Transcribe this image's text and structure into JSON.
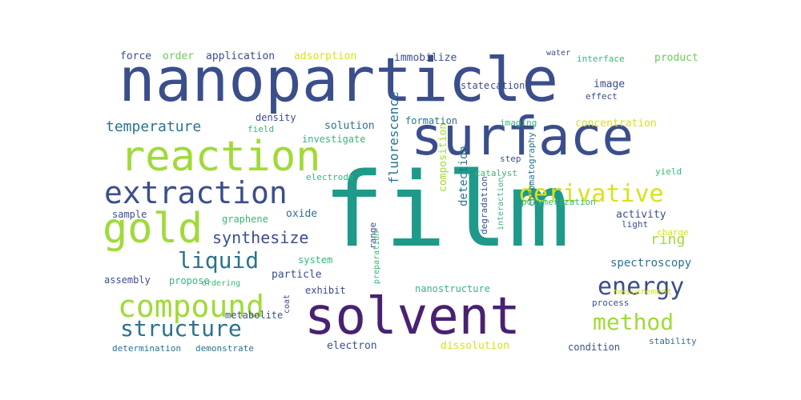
{
  "palette": {
    "navy": "#3b4e8c",
    "purple": "#482173",
    "dark_teal": "#2c728e",
    "teal": "#1f9a8a",
    "green": "#35b779",
    "lime": "#a0da39",
    "yellow": "#d8e219",
    "light_green": "#6ccd5a"
  },
  "words": [
    {
      "text": "nanoparticle",
      "color": "#3b4e8c"
    },
    {
      "text": "film",
      "color": "#1f9a8a"
    },
    {
      "text": "surface",
      "color": "#3b4e8c"
    },
    {
      "text": "solvent",
      "color": "#482173"
    },
    {
      "text": "reaction",
      "color": "#a0da39"
    },
    {
      "text": "extraction",
      "color": "#3b4e8c"
    },
    {
      "text": "gold",
      "color": "#a0da39"
    },
    {
      "text": "compound",
      "color": "#a0da39"
    },
    {
      "text": "derivative",
      "color": "#d8e219"
    },
    {
      "text": "energy",
      "color": "#3b4e8c"
    },
    {
      "text": "method",
      "color": "#a0da39"
    },
    {
      "text": "structure",
      "color": "#2c728e"
    },
    {
      "text": "liquid",
      "color": "#2c728e"
    },
    {
      "text": "temperature",
      "color": "#2c728e"
    },
    {
      "text": "synthesize",
      "color": "#3b4e8c"
    },
    {
      "text": "ring",
      "color": "#a0da39"
    },
    {
      "text": "spectroscopy",
      "color": "#2c728e"
    },
    {
      "text": "fluorescence",
      "color": "#2c728e"
    },
    {
      "text": "application",
      "color": "#3b4e8c"
    },
    {
      "text": "adsorption",
      "color": "#d8e219"
    },
    {
      "text": "force",
      "color": "#3b4e8c"
    },
    {
      "text": "order",
      "color": "#6ccd5a"
    },
    {
      "text": "immobilize",
      "color": "#3b4e8c"
    },
    {
      "text": "product",
      "color": "#6ccd5a"
    },
    {
      "text": "water",
      "color": "#3b4e8c"
    },
    {
      "text": "interface",
      "color": "#35b779"
    },
    {
      "text": "concentration",
      "color": "#d8e219"
    },
    {
      "text": "image",
      "color": "#3b4e8c"
    },
    {
      "text": "effect",
      "color": "#3b4e8c"
    },
    {
      "text": "state",
      "color": "#3b4e8c"
    },
    {
      "text": "cation",
      "color": "#3b4e8c"
    },
    {
      "text": "density",
      "color": "#3b4e8c"
    },
    {
      "text": "solution",
      "color": "#2c728e"
    },
    {
      "text": "formation",
      "color": "#2c728e"
    },
    {
      "text": "imaging",
      "color": "#35b779"
    },
    {
      "text": "investigate",
      "color": "#35b779"
    },
    {
      "text": "field",
      "color": "#35b779"
    },
    {
      "text": "activity",
      "color": "#3b4e8c"
    },
    {
      "text": "oxide",
      "color": "#2c728e"
    },
    {
      "text": "graphene",
      "color": "#35b779"
    },
    {
      "text": "sample",
      "color": "#3b4e8c"
    },
    {
      "text": "system",
      "color": "#35b779"
    },
    {
      "text": "particle",
      "color": "#3b4e8c"
    },
    {
      "text": "assembly",
      "color": "#3b4e8c"
    },
    {
      "text": "propose",
      "color": "#35b779"
    },
    {
      "text": "exhibit",
      "color": "#3b4e8c"
    },
    {
      "text": "nanostructure",
      "color": "#35b779"
    },
    {
      "text": "metabolite",
      "color": "#3b4e8c"
    },
    {
      "text": "determination",
      "color": "#2c728e"
    },
    {
      "text": "demonstrate",
      "color": "#2c728e"
    },
    {
      "text": "electron",
      "color": "#3b4e8c"
    },
    {
      "text": "dissolution",
      "color": "#d8e219"
    },
    {
      "text": "condition",
      "color": "#3b4e8c"
    },
    {
      "text": "stability",
      "color": "#2c728e"
    },
    {
      "text": "detection",
      "color": "#2c728e"
    },
    {
      "text": "composition",
      "color": "#a0da39"
    },
    {
      "text": "degradation",
      "color": "#3b4e8c"
    },
    {
      "text": "chromatography",
      "color": "#2c728e"
    },
    {
      "text": "measurement",
      "color": "#d8e219"
    },
    {
      "text": "process",
      "color": "#3b4e8c"
    },
    {
      "text": "polymerization",
      "color": "#35b779"
    },
    {
      "text": "catalyst",
      "color": "#35b779"
    },
    {
      "text": "step",
      "color": "#3b4e8c"
    },
    {
      "text": "charge",
      "color": "#d8e219"
    },
    {
      "text": "light",
      "color": "#3b4e8c"
    },
    {
      "text": "yield",
      "color": "#35b779"
    },
    {
      "text": "range",
      "color": "#3b4e8c"
    },
    {
      "text": "preparation",
      "color": "#35b779"
    },
    {
      "text": "interaction",
      "color": "#35b779"
    },
    {
      "text": "ordering",
      "color": "#35b779"
    },
    {
      "text": "electrode",
      "color": "#35b779"
    },
    {
      "text": "coat",
      "color": "#3b4e8c"
    }
  ]
}
